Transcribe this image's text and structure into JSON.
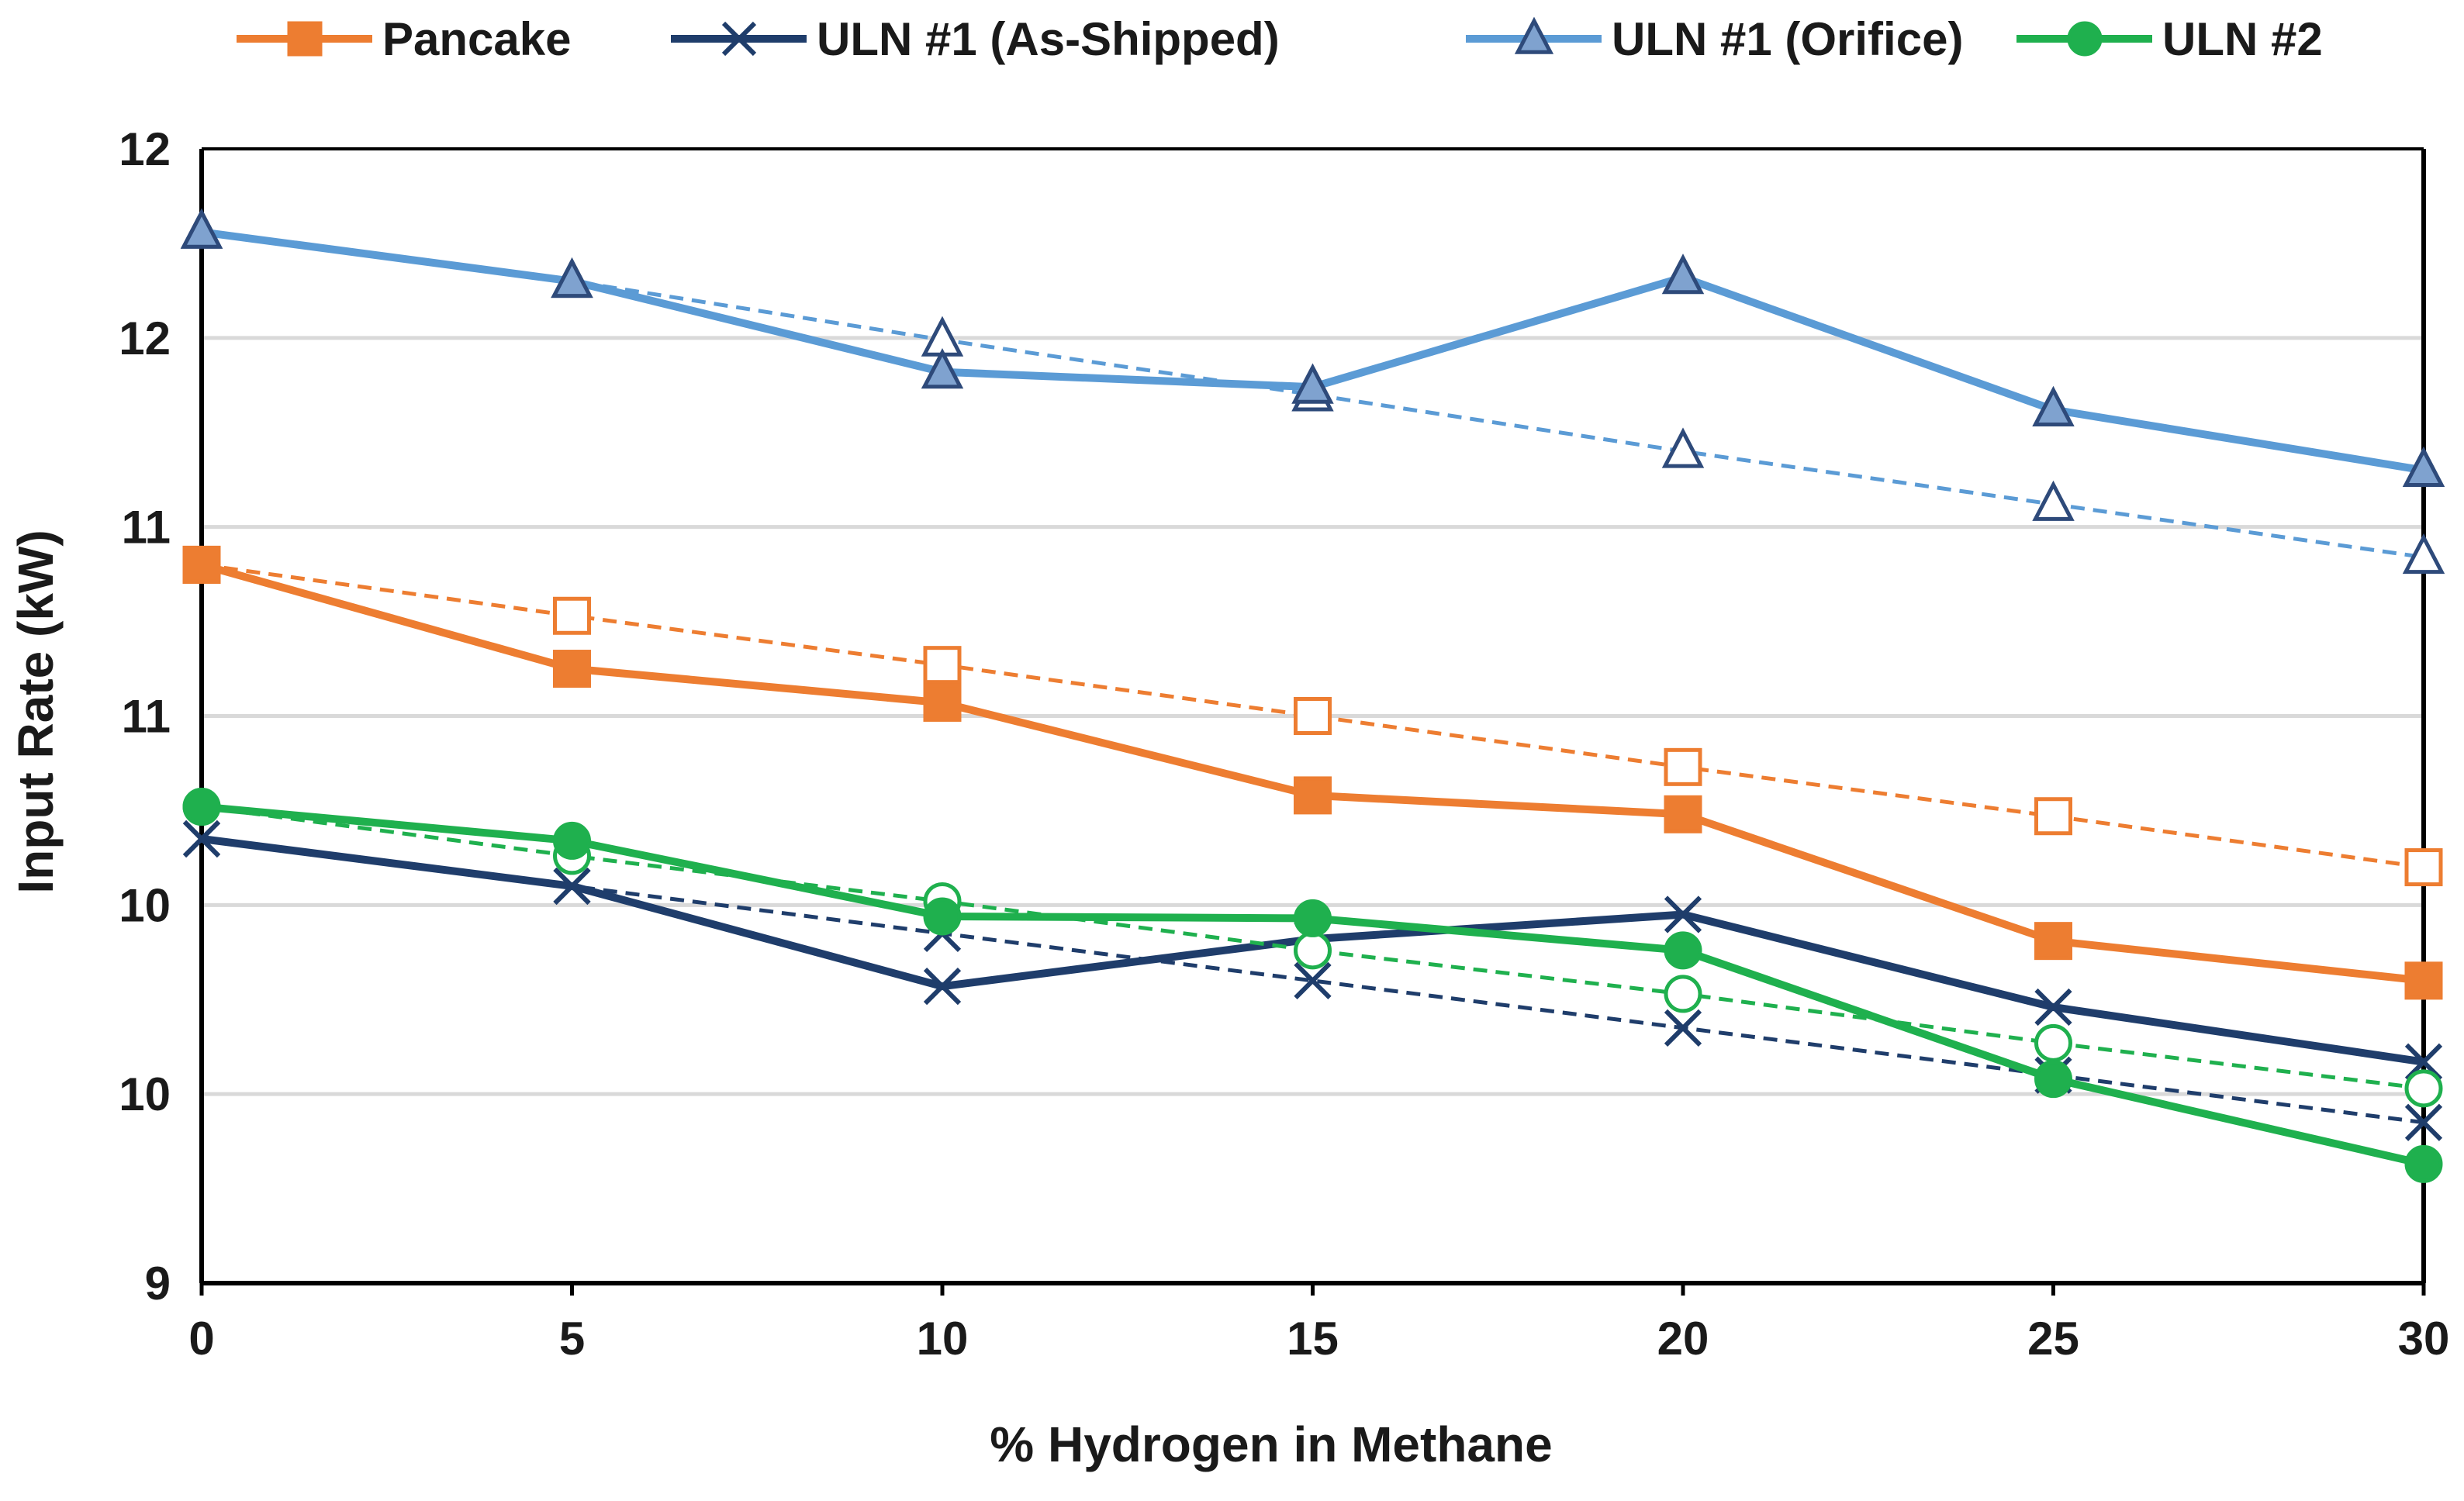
{
  "chart_data": {
    "type": "line",
    "title": "",
    "xlabel": "% Hydrogen in Methane",
    "ylabel": "Input Rate (kW)",
    "x": [
      0,
      5,
      10,
      15,
      20,
      25,
      30
    ],
    "xlim": [
      0,
      30
    ],
    "xticks": [
      0,
      5,
      10,
      15,
      20,
      25,
      30
    ],
    "xtick_labels": [
      "0",
      "5",
      "10",
      "15",
      "20",
      "25",
      "30"
    ],
    "ylim": [
      0,
      6
    ],
    "yticks": [
      0,
      1,
      2,
      3,
      4,
      5,
      6
    ],
    "ytick_labels": [
      "9",
      "10",
      "10",
      "11",
      "11",
      "12",
      "12"
    ],
    "grid": true,
    "legend_position": "top",
    "series": [
      {
        "name": "Pancake",
        "color": "#ED7D31",
        "marker": "square",
        "values": [
          3.8,
          3.25,
          3.07,
          2.58,
          2.48,
          1.81,
          1.6
        ],
        "trend_values": [
          3.8,
          3.53,
          3.27,
          3.0,
          2.73,
          2.47,
          2.2
        ]
      },
      {
        "name": "ULN #1 (As-Shipped)",
        "color": "#1F3D6B",
        "marker": "x",
        "values": [
          2.35,
          2.1,
          1.57,
          1.82,
          1.95,
          1.46,
          1.17
        ],
        "trend_values": [
          2.35,
          2.1,
          1.85,
          1.6,
          1.35,
          1.1,
          0.85
        ]
      },
      {
        "name": "ULN #1 (Orifice)",
        "color": "#5B9BD5",
        "marker": "triangle",
        "values": [
          5.56,
          5.3,
          4.82,
          4.74,
          5.32,
          4.62,
          4.3
        ],
        "trend_values": [
          5.56,
          5.3,
          4.99,
          4.7,
          4.4,
          4.12,
          3.84
        ]
      },
      {
        "name": "ULN #2",
        "color": "#1FB04E",
        "marker": "circle",
        "values": [
          2.52,
          2.34,
          1.94,
          1.93,
          1.76,
          1.08,
          0.63
        ],
        "trend_values": [
          2.52,
          2.26,
          2.02,
          1.76,
          1.53,
          1.27,
          1.03
        ]
      }
    ]
  }
}
